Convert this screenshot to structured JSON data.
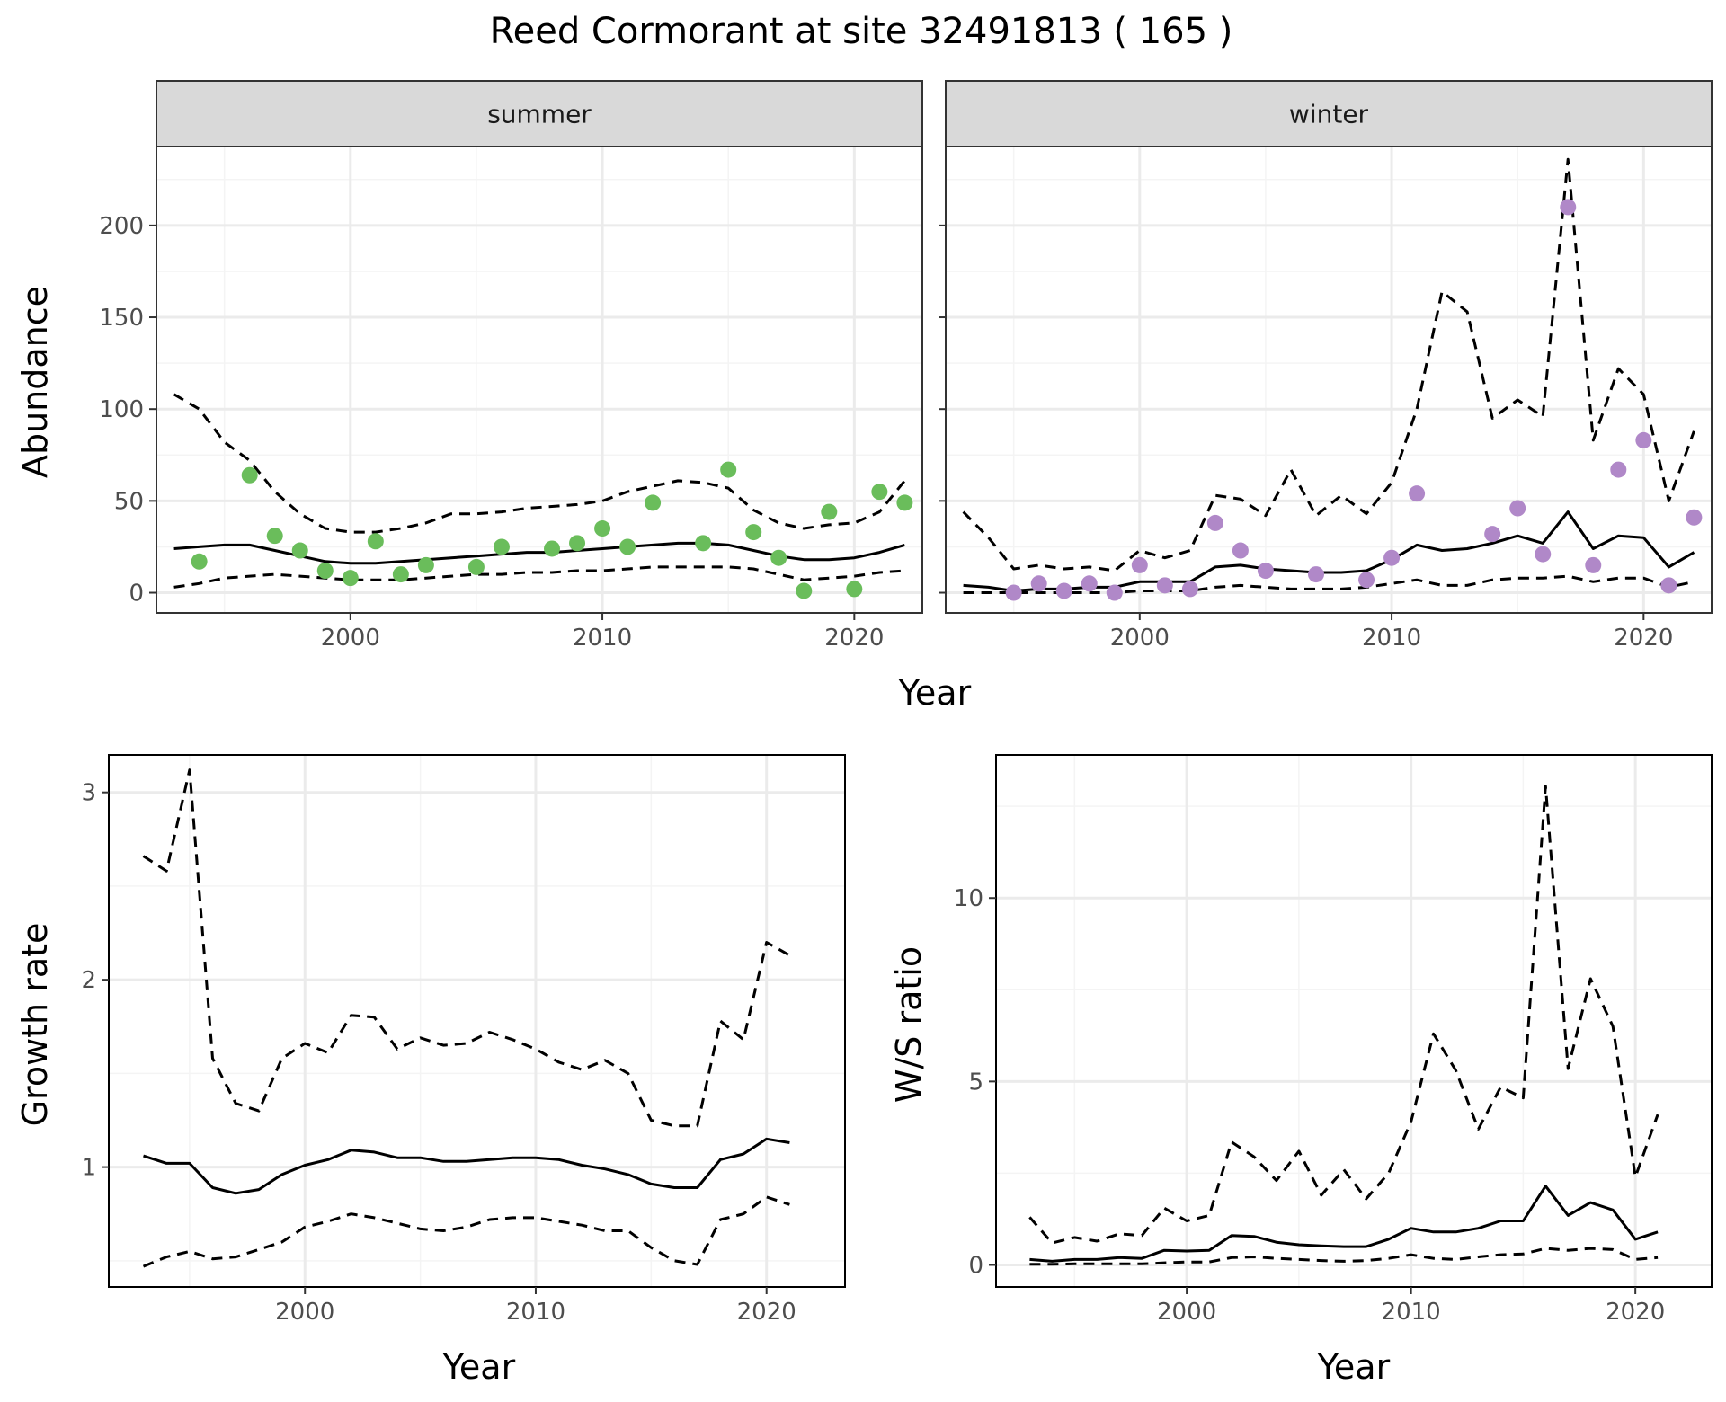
{
  "title": "Reed Cormorant at site 32491813 ( 165 )",
  "colors": {
    "summer_points": "#6ABD5B",
    "winter_points": "#B088C8",
    "lines": "#000000",
    "strip_fill": "#D9D9D9",
    "grid_major": "#EBEBEB",
    "grid_minor": "#F4F4F4",
    "panel_border": "#333333"
  },
  "chart_data": [
    {
      "type": "line",
      "panel": "summer",
      "strip_label": "summer",
      "ylabel": "Abundance",
      "xlabel": "Year",
      "xlim": [
        1992.3,
        2022.7
      ],
      "ylim": [
        -11,
        243
      ],
      "xticks": [
        2000,
        2010,
        2020
      ],
      "yticks": [
        0,
        50,
        100,
        150,
        200
      ],
      "grid": true,
      "points": {
        "x": [
          1994,
          1996,
          1997,
          1998,
          1999,
          2000,
          2001,
          2002,
          2003,
          2005,
          2006,
          2008,
          2009,
          2010,
          2011,
          2012,
          2014,
          2015,
          2016,
          2017,
          2018,
          2019,
          2020,
          2021,
          2022
        ],
        "y": [
          17,
          64,
          31,
          23,
          12,
          8,
          28,
          10,
          15,
          14,
          25,
          24,
          27,
          35,
          25,
          49,
          27,
          67,
          33,
          19,
          1,
          44,
          2,
          55,
          49
        ]
      },
      "series": [
        {
          "x": [
            1993,
            1994,
            1995,
            1996,
            1997,
            1998,
            1999,
            2000,
            2001,
            2002,
            2003,
            2004,
            2005,
            2006,
            2007,
            2008,
            2009,
            2010,
            2011,
            2012,
            2013,
            2014,
            2015,
            2016,
            2017,
            2018,
            2019,
            2020,
            2021,
            2022
          ],
          "y": [
            24,
            25,
            26,
            26,
            23,
            20,
            17,
            16,
            16,
            17,
            18,
            19,
            20,
            21,
            22,
            22,
            23,
            24,
            25,
            26,
            27,
            27,
            26,
            23,
            20,
            18,
            18,
            19,
            22,
            26
          ],
          "style": "solid"
        },
        {
          "x": [
            1993,
            1994,
            1995,
            1996,
            1997,
            1998,
            1999,
            2000,
            2001,
            2002,
            2003,
            2004,
            2005,
            2006,
            2007,
            2008,
            2009,
            2010,
            2011,
            2012,
            2013,
            2014,
            2015,
            2016,
            2017,
            2018,
            2019,
            2020,
            2021,
            2022
          ],
          "y": [
            108,
            100,
            82,
            72,
            55,
            43,
            35,
            33,
            33,
            35,
            38,
            43,
            43,
            44,
            46,
            47,
            48,
            50,
            55,
            58,
            61,
            60,
            57,
            45,
            38,
            35,
            37,
            38,
            44,
            61
          ],
          "style": "dashed"
        },
        {
          "x": [
            1993,
            1994,
            1995,
            1996,
            1997,
            1998,
            1999,
            2000,
            2001,
            2002,
            2003,
            2004,
            2005,
            2006,
            2007,
            2008,
            2009,
            2010,
            2011,
            2012,
            2013,
            2014,
            2015,
            2016,
            2017,
            2018,
            2019,
            2020,
            2021,
            2022
          ],
          "y": [
            3,
            5,
            8,
            9,
            10,
            9,
            8,
            7,
            7,
            7,
            8,
            9,
            10,
            10,
            11,
            11,
            12,
            12,
            13,
            14,
            14,
            14,
            14,
            13,
            10,
            7,
            8,
            9,
            11,
            12
          ],
          "style": "dashed"
        }
      ]
    },
    {
      "type": "line",
      "panel": "winter",
      "strip_label": "winter",
      "xlabel": "Year",
      "xlim": [
        1992.3,
        2022.7
      ],
      "ylim": [
        -11,
        243
      ],
      "xticks": [
        2000,
        2010,
        2020
      ],
      "yticks": [
        0,
        50,
        100,
        150,
        200
      ],
      "grid": true,
      "points": {
        "x": [
          1995,
          1996,
          1997,
          1998,
          1999,
          2000,
          2001,
          2002,
          2003,
          2004,
          2005,
          2007,
          2009,
          2010,
          2011,
          2014,
          2015,
          2016,
          2017,
          2018,
          2019,
          2020,
          2021,
          2022
        ],
        "y": [
          0,
          5,
          1,
          5,
          0,
          15,
          4,
          2,
          38,
          23,
          12,
          10,
          7,
          19,
          54,
          32,
          46,
          21,
          210,
          15,
          67,
          83,
          4,
          41
        ]
      },
      "series": [
        {
          "x": [
            1993,
            1994,
            1995,
            1996,
            1997,
            1998,
            1999,
            2000,
            2001,
            2002,
            2003,
            2004,
            2005,
            2006,
            2007,
            2008,
            2009,
            2010,
            2011,
            2012,
            2013,
            2014,
            2015,
            2016,
            2017,
            2018,
            2019,
            2020,
            2021,
            2022
          ],
          "y": [
            4,
            3,
            1,
            2,
            2,
            3,
            3,
            6,
            6,
            6,
            14,
            15,
            13,
            12,
            11,
            11,
            12,
            18,
            26,
            23,
            24,
            27,
            31,
            27,
            44,
            24,
            31,
            30,
            14,
            22
          ],
          "style": "solid"
        },
        {
          "x": [
            1993,
            1994,
            1995,
            1996,
            1997,
            1998,
            1999,
            2000,
            2001,
            2002,
            2003,
            2004,
            2005,
            2006,
            2007,
            2008,
            2009,
            2010,
            2011,
            2012,
            2013,
            2014,
            2015,
            2016,
            2017,
            2018,
            2019,
            2020,
            2021,
            2022
          ],
          "y": [
            44,
            30,
            13,
            15,
            13,
            14,
            12,
            23,
            19,
            23,
            53,
            51,
            42,
            67,
            42,
            53,
            43,
            60,
            100,
            164,
            153,
            95,
            105,
            96,
            236,
            83,
            122,
            108,
            50,
            88
          ],
          "style": "dashed"
        },
        {
          "x": [
            1993,
            1994,
            1995,
            1996,
            1997,
            1998,
            1999,
            2000,
            2001,
            2002,
            2003,
            2004,
            2005,
            2006,
            2007,
            2008,
            2009,
            2010,
            2011,
            2012,
            2013,
            2014,
            2015,
            2016,
            2017,
            2018,
            2019,
            2020,
            2021,
            2022
          ],
          "y": [
            0,
            0,
            0,
            0,
            0,
            0,
            0,
            1,
            1,
            1,
            3,
            4,
            3,
            2,
            2,
            2,
            3,
            5,
            7,
            4,
            4,
            7,
            8,
            8,
            9,
            6,
            8,
            8,
            3,
            6
          ],
          "style": "dashed"
        }
      ]
    },
    {
      "type": "line",
      "panel": "growth",
      "ylabel": "Growth rate",
      "xlabel": "Year",
      "xlim": [
        1991.5,
        2023.4
      ],
      "ylim": [
        0.36,
        3.2
      ],
      "xticks": [
        2000,
        2010,
        2020
      ],
      "yticks": [
        1,
        2,
        3
      ],
      "grid": true,
      "series": [
        {
          "x": [
            1993,
            1994,
            1995,
            1996,
            1997,
            1998,
            1999,
            2000,
            2001,
            2002,
            2003,
            2004,
            2005,
            2006,
            2007,
            2008,
            2009,
            2010,
            2011,
            2012,
            2013,
            2014,
            2015,
            2016,
            2017,
            2018,
            2019,
            2020,
            2021
          ],
          "y": [
            1.06,
            1.02,
            1.02,
            0.89,
            0.86,
            0.88,
            0.96,
            1.01,
            1.04,
            1.09,
            1.08,
            1.05,
            1.05,
            1.03,
            1.03,
            1.04,
            1.05,
            1.05,
            1.04,
            1.01,
            0.99,
            0.96,
            0.91,
            0.89,
            0.89,
            1.04,
            1.07,
            1.15,
            1.13
          ],
          "style": "solid"
        },
        {
          "x": [
            1993,
            1994,
            1995,
            1996,
            1997,
            1998,
            1999,
            2000,
            2001,
            2002,
            2003,
            2004,
            2005,
            2006,
            2007,
            2008,
            2009,
            2010,
            2011,
            2012,
            2013,
            2014,
            2015,
            2016,
            2017,
            2018,
            2019,
            2020,
            2021
          ],
          "y": [
            2.66,
            2.58,
            3.12,
            1.58,
            1.34,
            1.3,
            1.58,
            1.66,
            1.61,
            1.81,
            1.8,
            1.63,
            1.69,
            1.65,
            1.66,
            1.72,
            1.68,
            1.63,
            1.56,
            1.52,
            1.57,
            1.5,
            1.25,
            1.22,
            1.22,
            1.78,
            1.68,
            2.2,
            2.13
          ],
          "style": "dashed"
        },
        {
          "x": [
            1993,
            1994,
            1995,
            1996,
            1997,
            1998,
            1999,
            2000,
            2001,
            2002,
            2003,
            2004,
            2005,
            2006,
            2007,
            2008,
            2009,
            2010,
            2011,
            2012,
            2013,
            2014,
            2015,
            2016,
            2017,
            2018,
            2019,
            2020,
            2021
          ],
          "y": [
            0.47,
            0.52,
            0.55,
            0.51,
            0.52,
            0.56,
            0.6,
            0.68,
            0.71,
            0.75,
            0.73,
            0.7,
            0.67,
            0.66,
            0.68,
            0.72,
            0.73,
            0.73,
            0.71,
            0.69,
            0.66,
            0.66,
            0.57,
            0.5,
            0.48,
            0.72,
            0.75,
            0.84,
            0.8
          ],
          "style": "dashed"
        }
      ]
    },
    {
      "type": "line",
      "panel": "ratio",
      "ylabel": "W/S ratio",
      "xlabel": "Year",
      "xlim": [
        1991.5,
        2023.4
      ],
      "ylim": [
        -0.6,
        13.9
      ],
      "xticks": [
        2000,
        2010,
        2020
      ],
      "yticks": [
        0,
        5,
        10
      ],
      "grid": true,
      "series": [
        {
          "x": [
            1993,
            1994,
            1995,
            1996,
            1997,
            1998,
            1999,
            2000,
            2001,
            2002,
            2003,
            2004,
            2005,
            2006,
            2007,
            2008,
            2009,
            2010,
            2011,
            2012,
            2013,
            2014,
            2015,
            2016,
            2017,
            2018,
            2019,
            2020,
            2021
          ],
          "y": [
            0.15,
            0.1,
            0.15,
            0.15,
            0.2,
            0.18,
            0.4,
            0.38,
            0.4,
            0.8,
            0.78,
            0.62,
            0.55,
            0.52,
            0.5,
            0.5,
            0.7,
            1.0,
            0.9,
            0.9,
            1.0,
            1.2,
            1.2,
            2.15,
            1.35,
            1.7,
            1.5,
            0.7,
            0.9
          ],
          "style": "solid"
        },
        {
          "x": [
            1993,
            1994,
            1995,
            1996,
            1997,
            1998,
            1999,
            2000,
            2001,
            2002,
            2003,
            2004,
            2005,
            2006,
            2007,
            2008,
            2009,
            2010,
            2011,
            2012,
            2013,
            2014,
            2015,
            2016,
            2017,
            2018,
            2019,
            2020,
            2021
          ],
          "y": [
            1.3,
            0.6,
            0.75,
            0.65,
            0.85,
            0.8,
            1.55,
            1.2,
            1.35,
            3.35,
            2.95,
            2.3,
            3.1,
            1.9,
            2.6,
            1.8,
            2.5,
            3.9,
            6.3,
            5.3,
            3.7,
            4.85,
            4.55,
            13.05,
            5.35,
            7.8,
            6.5,
            2.4,
            4.1
          ],
          "style": "dashed"
        },
        {
          "x": [
            1993,
            1994,
            1995,
            1996,
            1997,
            1998,
            1999,
            2000,
            2001,
            2002,
            2003,
            2004,
            2005,
            2006,
            2007,
            2008,
            2009,
            2010,
            2011,
            2012,
            2013,
            2014,
            2015,
            2016,
            2017,
            2018,
            2019,
            2020,
            2021
          ],
          "y": [
            0.02,
            0.02,
            0.03,
            0.03,
            0.03,
            0.03,
            0.06,
            0.08,
            0.08,
            0.2,
            0.22,
            0.18,
            0.15,
            0.12,
            0.1,
            0.12,
            0.18,
            0.28,
            0.18,
            0.15,
            0.22,
            0.28,
            0.3,
            0.45,
            0.4,
            0.45,
            0.42,
            0.15,
            0.2
          ],
          "style": "dashed"
        }
      ]
    }
  ]
}
